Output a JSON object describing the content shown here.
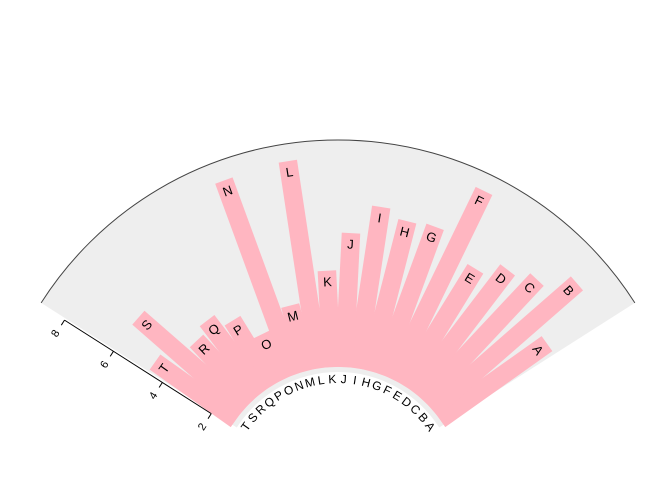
{
  "chart_data": {
    "type": "bar",
    "layout": "circular-fan",
    "categories": [
      "A",
      "B",
      "C",
      "D",
      "E",
      "F",
      "G",
      "H",
      "I",
      "J",
      "K",
      "L",
      "M",
      "N",
      "O",
      "P",
      "Q",
      "R",
      "S",
      "T"
    ],
    "values": [
      5.7,
      7.8,
      6.9,
      6.5,
      5.9,
      8.4,
      6.6,
      6.5,
      6.8,
      5.8,
      4.5,
      8.4,
      3.5,
      8.3,
      2.9,
      3.8,
      4.3,
      4.0,
      6.0,
      4.6
    ],
    "ylim": [
      1,
      9
    ],
    "y_ticks": [
      2,
      4,
      6,
      8
    ],
    "grid": false,
    "colors": {
      "bar": "#ffb6c1",
      "sector_bg": "#eeeeee",
      "sector_border": "#444444",
      "text": "#000000"
    }
  }
}
